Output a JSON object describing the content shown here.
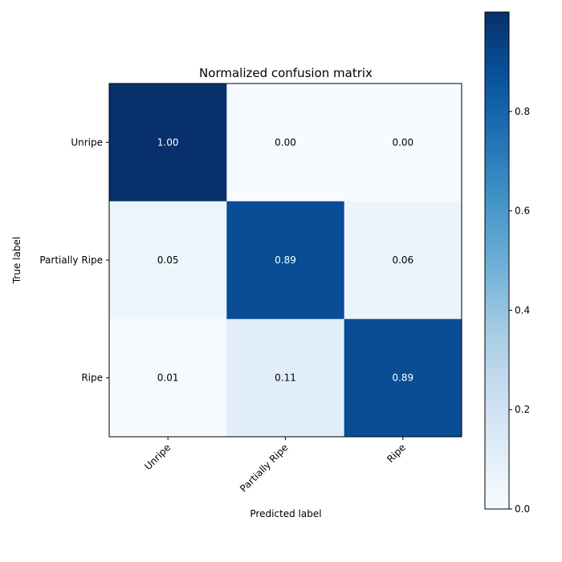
{
  "chart_data": {
    "type": "heatmap",
    "title": "Normalized confusion matrix",
    "xlabel": "Predicted label",
    "ylabel": "True label",
    "x_categories": [
      "Unripe",
      "Partially Ripe",
      "Ripe"
    ],
    "y_categories": [
      "Unripe",
      "Partially Ripe",
      "Ripe"
    ],
    "values": [
      [
        1.0,
        0.0,
        0.0
      ],
      [
        0.05,
        0.89,
        0.06
      ],
      [
        0.01,
        0.11,
        0.89
      ]
    ],
    "cell_labels": [
      [
        "1.00",
        "0.00",
        "0.00"
      ],
      [
        "0.05",
        "0.89",
        "0.06"
      ],
      [
        "0.01",
        "0.11",
        "0.89"
      ]
    ],
    "colormap": "Blues",
    "color_range": [
      0,
      1
    ],
    "colorbar_ticks": [
      0.0,
      0.2,
      0.4,
      0.6,
      0.8
    ],
    "colorbar_tick_labels": [
      "0.0",
      "0.2",
      "0.4",
      "0.6",
      "0.8"
    ],
    "text_color_dark": "#000000",
    "text_color_light": "#ffffff",
    "x_tick_rotation": "45deg"
  }
}
